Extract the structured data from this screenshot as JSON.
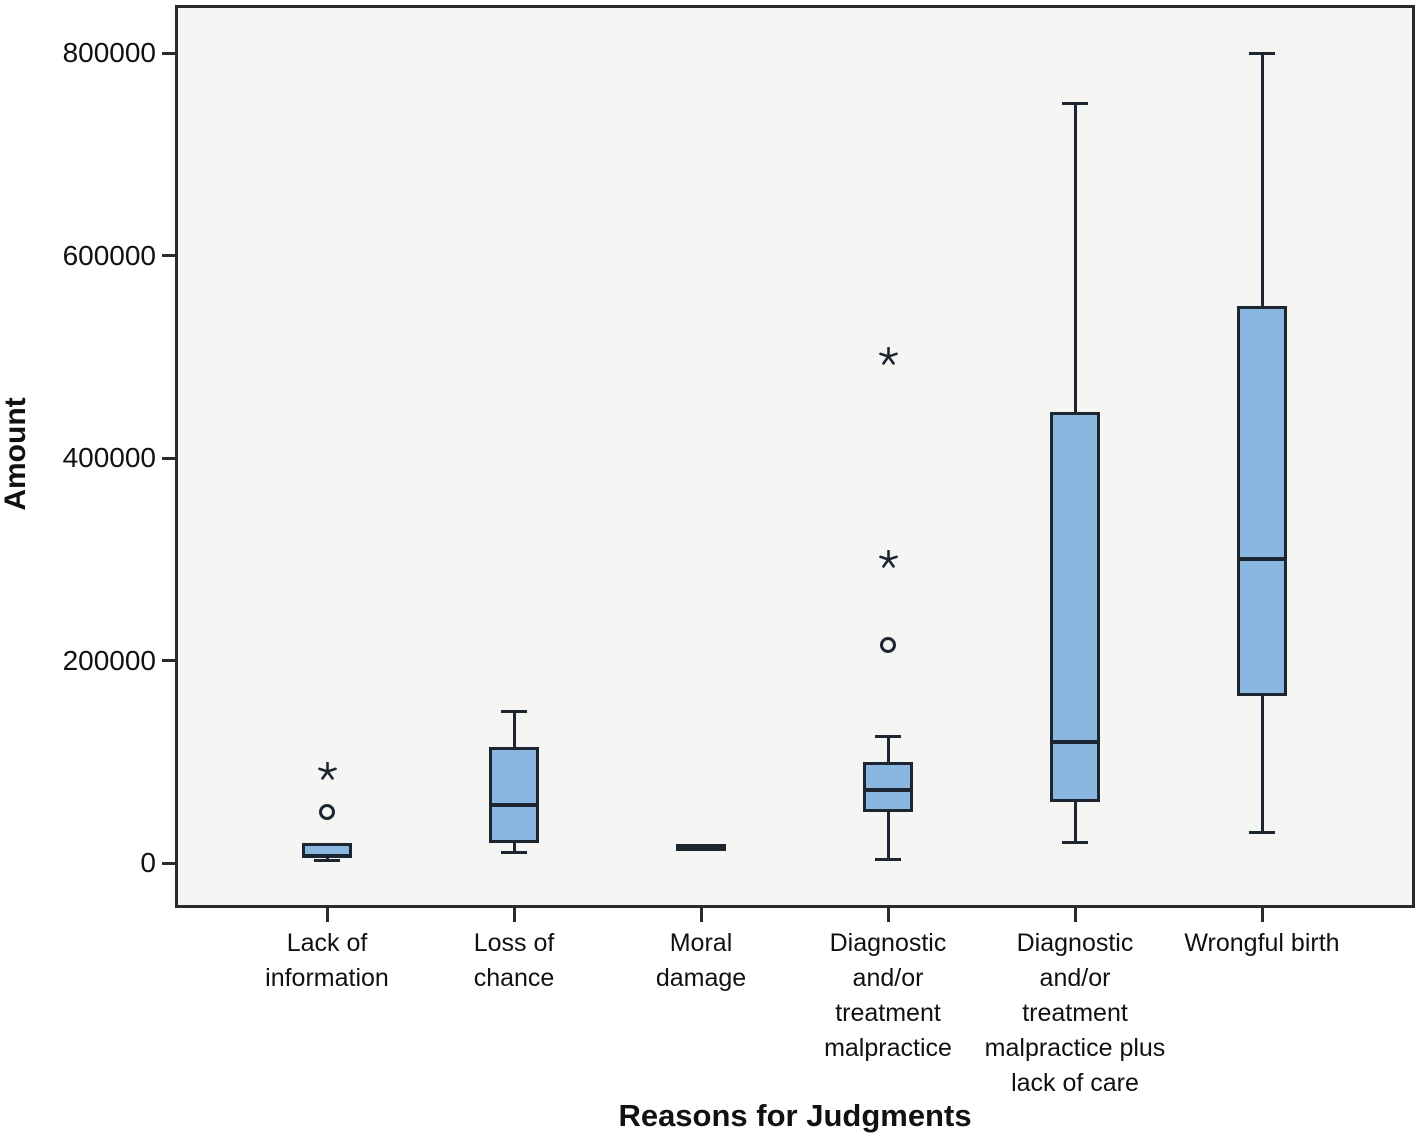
{
  "chart_data": {
    "type": "box",
    "title": "",
    "xlabel": "Reasons for Judgments",
    "ylabel": "Amount",
    "ylim": [
      0,
      800000
    ],
    "yticks": [
      0,
      200000,
      400000,
      600000,
      800000
    ],
    "grid": false,
    "legend": "none",
    "plot_bg_color": "#f5f5f4",
    "box_fill_color": "#8ab7e0",
    "box_line_color": "#1c2530",
    "categories": [
      "Lack of\ninformation",
      "Loss of\nchance",
      "Moral\ndamage",
      "Diagnostic\nand/or\ntreatment\nmalpractice",
      "Diagnostic\nand/or\ntreatment\nmalpractice plus\nlack of care",
      "Wrongful birth"
    ],
    "series": [
      {
        "category": "Lack of information",
        "whisker_low": 2000,
        "q1": 4500,
        "median": 7000,
        "q3": 20000,
        "whisker_high": 20000,
        "outliers": [
          {
            "value": 50000,
            "marker": "circle"
          },
          {
            "value": 90000,
            "marker": "star"
          }
        ]
      },
      {
        "category": "Loss of chance",
        "whisker_low": 10000,
        "q1": 20000,
        "median": 57000,
        "q3": 115000,
        "whisker_high": 150000,
        "outliers": []
      },
      {
        "category": "Moral damage",
        "whisker_low": 12000,
        "q1": 12000,
        "median": 15000,
        "q3": 19000,
        "whisker_high": 19000,
        "outliers": []
      },
      {
        "category": "Diagnostic and/or treatment malpractice",
        "whisker_low": 3000,
        "q1": 50000,
        "median": 72000,
        "q3": 100000,
        "whisker_high": 125000,
        "outliers": [
          {
            "value": 215000,
            "marker": "circle"
          },
          {
            "value": 300000,
            "marker": "star"
          },
          {
            "value": 500000,
            "marker": "star"
          }
        ]
      },
      {
        "category": "Diagnostic and/or treatment malpractice plus lack of care",
        "whisker_low": 20000,
        "q1": 60000,
        "median": 120000,
        "q3": 445000,
        "whisker_high": 750000,
        "outliers": []
      },
      {
        "category": "Wrongful birth",
        "whisker_low": 30000,
        "q1": 165000,
        "median": 300000,
        "q3": 550000,
        "whisker_high": 800000,
        "outliers": []
      }
    ]
  }
}
